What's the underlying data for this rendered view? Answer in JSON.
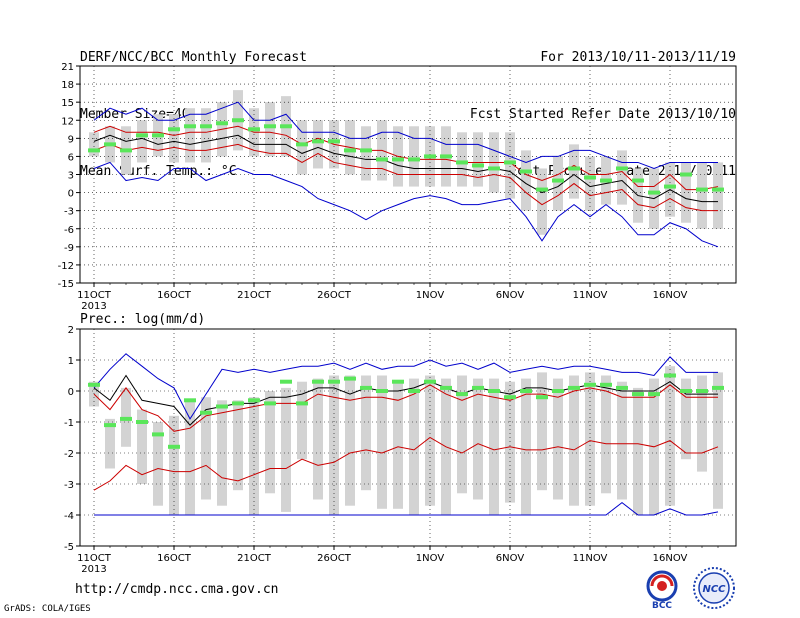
{
  "header": {
    "left": [
      "DERF/NCC/BCC Monthly Forecast",
      "Member Size=40",
      "Mean Surf. Temp.: °C"
    ],
    "right": [
      "For 2013/10/11-2013/11/19",
      "Fcst Started Refer Date 2013/10/10",
      "Fcst Produced Date 2013/10/11"
    ]
  },
  "footer": {
    "url": "http://cmdp.ncc.cma.gov.cn",
    "credit": "GrADS: COLA/IGES",
    "logo1_text": "BCC",
    "logo2_text": "NCC"
  },
  "colors": {
    "bar": "#d3d3d3",
    "mean": "#000000",
    "red": "#cc0000",
    "blue": "#0000cc",
    "green": "#5ae65a"
  },
  "chart_data": [
    {
      "type": "line",
      "title": "DERF/NCC/BCC Monthly Forecast",
      "ylabel": "Mean Surf. Temp.: °C",
      "ylim": [
        -15,
        21
      ],
      "yticks": [
        "21",
        "18",
        "15",
        "12",
        "9",
        "6",
        "3",
        "0",
        "-3",
        "-6",
        "-9",
        "-12",
        "-15"
      ],
      "xticks": [
        "11OCT",
        "16OCT",
        "21OCT",
        "26OCT",
        "1NOV",
        "6NOV",
        "11NOV",
        "16NOV"
      ],
      "xtick_sub": "2013",
      "grid": true,
      "x": [
        "2013-10-11",
        "2013-10-12",
        "2013-10-13",
        "2013-10-14",
        "2013-10-15",
        "2013-10-16",
        "2013-10-17",
        "2013-10-18",
        "2013-10-19",
        "2013-10-20",
        "2013-10-21",
        "2013-10-22",
        "2013-10-23",
        "2013-10-24",
        "2013-10-25",
        "2013-10-26",
        "2013-10-27",
        "2013-10-28",
        "2013-10-29",
        "2013-10-30",
        "2013-10-31",
        "2013-11-01",
        "2013-11-02",
        "2013-11-03",
        "2013-11-04",
        "2013-11-05",
        "2013-11-06",
        "2013-11-07",
        "2013-11-08",
        "2013-11-09",
        "2013-11-10",
        "2013-11-11",
        "2013-11-12",
        "2013-11-13",
        "2013-11-14",
        "2013-11-15",
        "2013-11-16",
        "2013-11-17",
        "2013-11-18",
        "2013-11-19"
      ],
      "series": [
        {
          "role": "max",
          "values": [
            12,
            14,
            13,
            14,
            12,
            12,
            13,
            13,
            14,
            15,
            12,
            12,
            13,
            10,
            10,
            10,
            9,
            9,
            10,
            10,
            9,
            9,
            8,
            8,
            8,
            7,
            6,
            5,
            6,
            6,
            7,
            7,
            6,
            5,
            5,
            4,
            5,
            5,
            5,
            5
          ]
        },
        {
          "role": "p_high",
          "values": [
            10,
            11,
            10,
            10,
            10,
            9.5,
            10,
            10,
            10.5,
            11,
            10,
            10,
            9.5,
            8,
            9,
            8,
            7.5,
            7,
            7,
            6,
            5.5,
            5.5,
            5.5,
            5,
            5,
            5,
            5,
            3,
            2,
            3,
            4.5,
            3,
            3,
            3.5,
            1,
            1,
            3,
            0.5,
            0.5,
            1
          ]
        },
        {
          "role": "mean",
          "values": [
            8.5,
            9.5,
            8.5,
            9,
            8,
            8.5,
            8,
            8.5,
            9,
            9.5,
            8,
            8,
            8,
            6.5,
            7.5,
            6.5,
            6,
            5.5,
            5.5,
            4.5,
            4,
            4,
            4,
            4,
            3.5,
            4,
            3.5,
            1.5,
            0,
            1,
            3,
            1,
            1.5,
            2,
            -0.5,
            -1,
            0.5,
            -1,
            -1.5,
            -1.5
          ]
        },
        {
          "role": "p_low",
          "values": [
            7,
            8,
            7,
            7.5,
            7,
            7.5,
            7,
            7,
            7.5,
            8,
            7,
            6.5,
            6.5,
            5,
            6.5,
            5,
            4.5,
            4,
            4,
            3,
            3,
            3,
            3,
            3,
            2.5,
            3,
            2.5,
            0,
            -2,
            -0.5,
            1.5,
            -0.5,
            0,
            0.5,
            -2,
            -2.5,
            -1,
            -2.5,
            -3,
            -3
          ]
        },
        {
          "role": "min",
          "values": [
            4,
            5,
            2,
            2.5,
            2,
            4,
            4,
            2,
            3,
            4,
            3,
            3,
            2,
            1,
            -1,
            -2,
            -3,
            -4.5,
            -3,
            -2,
            -1,
            -0.5,
            -1,
            -2,
            -2,
            -1.5,
            -1,
            -4,
            -8,
            -4,
            -2,
            -4,
            -2,
            -4,
            -7,
            -7,
            -5,
            -6,
            -8,
            -9
          ]
        },
        {
          "role": "observed",
          "values": [
            7,
            8,
            7,
            9.5,
            9.5,
            10.5,
            11,
            11,
            11.5,
            12,
            10.5,
            11,
            11,
            8,
            8.5,
            8.5,
            7,
            7,
            5.5,
            5.5,
            5.5,
            6,
            6,
            5,
            4.5,
            4,
            5,
            3.5,
            0.5,
            2,
            4,
            2.5,
            2,
            4,
            2,
            0,
            1,
            3,
            0.5,
            0.5
          ]
        }
      ],
      "spread": [
        [
          6,
          10
        ],
        [
          5,
          11
        ],
        [
          3,
          11
        ],
        [
          5,
          12
        ],
        [
          6,
          13
        ],
        [
          5,
          13
        ],
        [
          5,
          14
        ],
        [
          5,
          14
        ],
        [
          6,
          15
        ],
        [
          7,
          17
        ],
        [
          6,
          14
        ],
        [
          6,
          15
        ],
        [
          6,
          16
        ],
        [
          3,
          12
        ],
        [
          4,
          12
        ],
        [
          4,
          12
        ],
        [
          3,
          12
        ],
        [
          2,
          11
        ],
        [
          2,
          12
        ],
        [
          1,
          11
        ],
        [
          1,
          11
        ],
        [
          1,
          11
        ],
        [
          1,
          11
        ],
        [
          1,
          10
        ],
        [
          1,
          10
        ],
        [
          0,
          10
        ],
        [
          -1,
          10
        ],
        [
          -3,
          7
        ],
        [
          -7,
          4
        ],
        [
          -3,
          6
        ],
        [
          -1,
          8
        ],
        [
          -3,
          6
        ],
        [
          -2,
          6
        ],
        [
          -2,
          7
        ],
        [
          -5,
          4
        ],
        [
          -6,
          4
        ],
        [
          -4,
          5
        ],
        [
          -5,
          5
        ],
        [
          -6,
          5
        ],
        [
          -6,
          5
        ]
      ]
    },
    {
      "type": "line",
      "ylabel": "Prec.: log(mm/d)",
      "ylim": [
        -5,
        2
      ],
      "yticks": [
        "2",
        "1",
        "0",
        "-1",
        "-2",
        "-3",
        "-4",
        "-5"
      ],
      "xticks": [
        "11OCT",
        "16OCT",
        "21OCT",
        "26OCT",
        "1NOV",
        "6NOV",
        "11NOV",
        "16NOV"
      ],
      "xtick_sub": "2013",
      "grid": true,
      "series": [
        {
          "role": "max",
          "values": [
            0.1,
            0.7,
            1.2,
            0.8,
            0.4,
            0.1,
            -0.9,
            -0.1,
            0.7,
            0.6,
            0.7,
            0.6,
            0.7,
            0.8,
            0.8,
            0.9,
            0.7,
            0.9,
            0.7,
            0.8,
            0.8,
            1,
            0.8,
            0.9,
            0.7,
            0.9,
            0.6,
            0.7,
            0.8,
            0.7,
            0.8,
            0.8,
            0.7,
            0.6,
            0.6,
            0.5,
            1.1,
            0.6,
            0.6,
            0.6
          ]
        },
        {
          "role": "mean",
          "values": [
            0.1,
            -0.3,
            0.5,
            -0.3,
            -0.4,
            -0.5,
            -1.1,
            -0.6,
            -0.5,
            -0.4,
            -0.4,
            -0.2,
            -0.2,
            -0.1,
            0.1,
            0.1,
            -0.1,
            0.1,
            0,
            0,
            0.1,
            0.3,
            0.1,
            -0.1,
            0.1,
            0,
            -0.1,
            0.1,
            0.1,
            0,
            0.1,
            0.2,
            0.1,
            0,
            0,
            0,
            0.3,
            -0.1,
            -0.1,
            -0.1
          ]
        },
        {
          "role": "p_high",
          "values": [
            -0.1,
            -0.6,
            0.1,
            -0.6,
            -0.8,
            -1.3,
            -1.2,
            -0.8,
            -0.7,
            -0.6,
            -0.5,
            -0.4,
            -0.4,
            -0.4,
            -0.1,
            -0.2,
            -0.3,
            -0.2,
            -0.2,
            -0.3,
            -0.1,
            0.2,
            -0.1,
            -0.3,
            -0.1,
            -0.2,
            -0.3,
            -0.1,
            -0.1,
            -0.2,
            0,
            0.1,
            0,
            -0.2,
            -0.2,
            -0.2,
            0.2,
            -0.2,
            -0.2,
            -0.2
          ]
        },
        {
          "role": "p_low",
          "values": [
            -3.2,
            -2.9,
            -2.4,
            -2.7,
            -2.5,
            -2.6,
            -2.6,
            -2.4,
            -2.8,
            -2.9,
            -2.7,
            -2.5,
            -2.5,
            -2.2,
            -2.4,
            -2.3,
            -2,
            -1.9,
            -2,
            -1.8,
            -1.9,
            -1.5,
            -1.8,
            -2,
            -1.7,
            -1.9,
            -1.8,
            -1.9,
            -1.9,
            -1.8,
            -1.9,
            -1.6,
            -1.7,
            -1.7,
            -1.7,
            -1.8,
            -1.6,
            -2,
            -2,
            -1.8
          ]
        },
        {
          "role": "min",
          "values": [
            -4,
            -4,
            -4,
            -4,
            -4,
            -4,
            -4,
            -4,
            -4,
            -4,
            -4,
            -4,
            -4,
            -4,
            -4,
            -4,
            -4,
            -4,
            -4,
            -4,
            -4,
            -4,
            -4,
            -4,
            -4,
            -4,
            -4,
            -4,
            -4,
            -4,
            -4,
            -4,
            -4,
            -3.6,
            -4,
            -4,
            -3.8,
            -4,
            -4,
            -3.9
          ]
        },
        {
          "role": "observed",
          "values": [
            0.2,
            -1.1,
            -0.9,
            -1,
            -1.4,
            -1.8,
            -0.3,
            -0.7,
            -0.5,
            -0.4,
            -0.3,
            -0.4,
            0.3,
            -0.4,
            0.3,
            0.3,
            0.4,
            0.1,
            0,
            0.3,
            0,
            0.3,
            0.1,
            -0.1,
            0.1,
            0,
            -0.2,
            0,
            -0.2,
            0,
            0.1,
            0.2,
            0.2,
            0.1,
            -0.1,
            -0.1,
            0.5,
            0,
            0,
            0.1
          ]
        }
      ],
      "spread": [
        [
          -0.5,
          0.3
        ],
        [
          -2.5,
          -0.9
        ],
        [
          -1.8,
          0.1
        ],
        [
          -3,
          -0.6
        ],
        [
          -3.7,
          -1
        ],
        [
          -4,
          -0.8
        ],
        [
          -4,
          -0.3
        ],
        [
          -3.5,
          -0.2
        ],
        [
          -3.7,
          -0.3
        ],
        [
          -3.2,
          -0.3
        ],
        [
          -4,
          -0.2
        ],
        [
          -3.3,
          0
        ],
        [
          -3.9,
          0.1
        ],
        [
          -2.2,
          0.3
        ],
        [
          -3.5,
          0.4
        ],
        [
          -4,
          0.5
        ],
        [
          -3.7,
          0.5
        ],
        [
          -3.2,
          0.5
        ],
        [
          -3.8,
          0.5
        ],
        [
          -3.8,
          0.3
        ],
        [
          -4,
          0.4
        ],
        [
          -3.7,
          0.5
        ],
        [
          -4,
          0.4
        ],
        [
          -3.3,
          0.5
        ],
        [
          -3.5,
          0.4
        ],
        [
          -4,
          0.4
        ],
        [
          -3.6,
          0.3
        ],
        [
          -4,
          0.4
        ],
        [
          -3.2,
          0.6
        ],
        [
          -3.5,
          0.4
        ],
        [
          -3.7,
          0.5
        ],
        [
          -3.7,
          0.6
        ],
        [
          -3.3,
          0.5
        ],
        [
          -3.5,
          0.3
        ],
        [
          -4,
          0.1
        ],
        [
          -4,
          0.4
        ],
        [
          -3.7,
          0.8
        ],
        [
          -2.2,
          0.4
        ],
        [
          -2.6,
          0.5
        ],
        [
          -3.8,
          0.6
        ]
      ]
    }
  ]
}
